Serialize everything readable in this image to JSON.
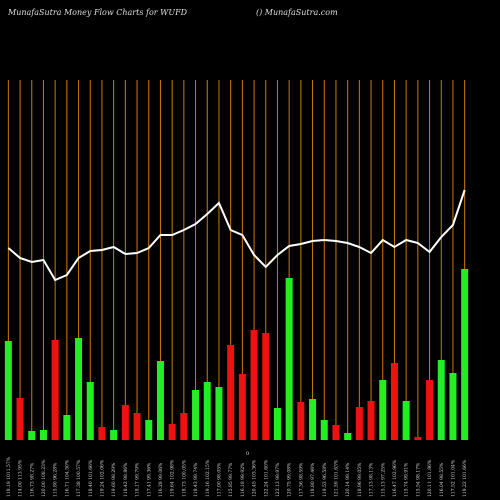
{
  "chart_data": {
    "type": "bar",
    "title": "MunafaSutra  Money Flow  Charts for WUFD",
    "subtitle": "() MunafaSutra.com",
    "axis_note": "0",
    "categories": [
      "118.19 1011.57%",
      "114.00 113.95%",
      "116.73 98.27%",
      "120.00 108.23%",
      "115.80 96.28%",
      "116.71 104.50%",
      "117.38 100.57%",
      "118.40 101.66%",
      "119.24 102.06%",
      "119.60 98.29%",
      "118.42 98.86%",
      "118.17 99.79%",
      "117.41 99.36%",
      "116.28 99.06%",
      "119.64 102.98%",
      "118.73 100.05%",
      "118.43 99.74%",
      "119.16 102.15%",
      "117.00 98.05%",
      "115.85 99.77%",
      "116.18 99.92%",
      "120.45 103.36%",
      "122.24 101.60%",
      "123.13 99.97%",
      "120.75 99.08%",
      "117.36 98.59%",
      "118.80 97.46%",
      "119.53 96.58%",
      "121.59 101.63%",
      "120.14 99.14%",
      "118.96 99.05%",
      "117.13 98.13%",
      "115.13 97.25%",
      "116.47 102.96%",
      "115.74 99.91%",
      "115.54 98.17%",
      "120.11 101.86%",
      "116.04 98.55%",
      "117.52 101.04%",
      "119.22 101.66%"
    ],
    "series": [
      {
        "values": [
          99,
          42,
          9,
          10,
          100,
          25,
          102,
          58,
          13,
          10,
          35,
          27,
          20,
          79,
          16,
          27,
          50,
          58,
          53,
          95,
          66,
          110,
          107,
          32,
          162,
          38,
          41,
          20,
          15,
          7,
          33,
          39,
          60,
          77,
          39,
          3,
          60,
          80,
          67,
          171
        ],
        "colors": [
          "#22ee22",
          "#ee1111",
          "#22ee22",
          "#22ee22",
          "#ee1111",
          "#22ee22",
          "#22ee22",
          "#22ee22",
          "#ee1111",
          "#22ee22",
          "#ee1111",
          "#ee1111",
          "#22ee22",
          "#22ee22",
          "#ee1111",
          "#ee1111",
          "#22ee22",
          "#22ee22",
          "#22ee22",
          "#ee1111",
          "#ee1111",
          "#ee1111",
          "#ee1111",
          "#22ee22",
          "#22ee22",
          "#ee1111",
          "#22ee22",
          "#22ee22",
          "#ee1111",
          "#22ee22",
          "#ee1111",
          "#ee1111",
          "#22ee22",
          "#ee1111",
          "#22ee22",
          "#ee1111",
          "#ee1111",
          "#22ee22",
          "#22ee22",
          "#22ee22"
        ]
      },
      {
        "type": "line",
        "color": "#ffffff",
        "values": [
          192,
          182,
          178,
          180,
          160,
          165,
          182,
          189,
          190,
          193,
          186,
          187,
          192,
          205,
          205,
          210,
          216,
          226,
          237,
          210,
          205,
          185,
          173,
          185,
          194,
          196,
          199,
          200,
          199,
          197,
          193,
          187,
          200,
          193,
          200,
          197,
          188,
          203,
          215,
          250
        ]
      }
    ],
    "ylim": [
      0,
      360
    ],
    "grid_color": "#cc7a00"
  }
}
